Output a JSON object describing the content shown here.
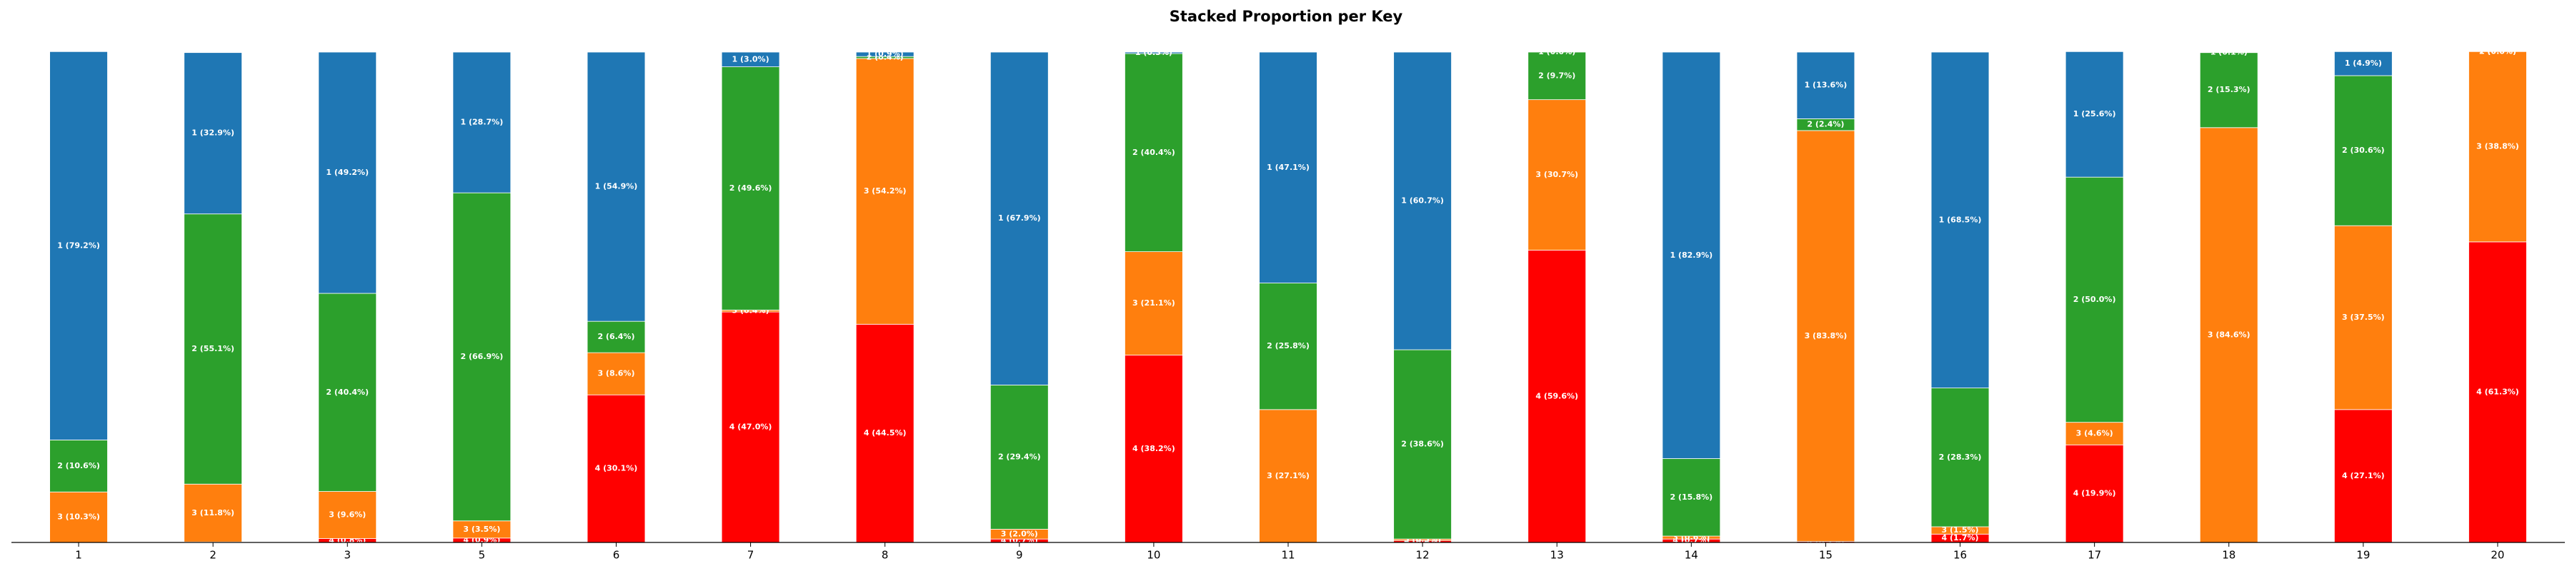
{
  "chart_data": {
    "type": "stacked_bar",
    "title": "Stacked Proportion per Key",
    "categories": [
      "1",
      "2",
      "3",
      "5",
      "6",
      "7",
      "8",
      "9",
      "10",
      "11",
      "12",
      "13",
      "14",
      "15",
      "16",
      "17",
      "18",
      "19",
      "20"
    ],
    "ylim": [
      0,
      100
    ],
    "series": [
      {
        "color": "#ff0000",
        "values": [
          0.0,
          0.1,
          0.8,
          0.9,
          30.1,
          47.0,
          44.5,
          0.7,
          38.2,
          0.0,
          0.4,
          59.6,
          0.7,
          0.2,
          1.7,
          19.9,
          0.0,
          27.1,
          61.3
        ],
        "value_labels": [
          "4 (0.0%)",
          "4 (0.1%)",
          "4 (0.8%)",
          "4 (0.9%)",
          "4 (30.1%)",
          "4 (47.0%)",
          "4 (44.5%)",
          "4 (0.7%)",
          "4 (38.2%)",
          "4 (0.0%)",
          "4 (0.4%)",
          "4 (59.6%)",
          "4 (0.7%)",
          "4 (0.2%)",
          "4 (1.7%)",
          "4 (19.9%)",
          "4 (0.0%)",
          "4 (27.1%)",
          "4 (61.3%)"
        ]
      },
      {
        "color": "#ff7f0e",
        "values": [
          10.3,
          11.8,
          9.6,
          3.5,
          8.6,
          0.4,
          54.2,
          2.0,
          21.1,
          27.1,
          0.3,
          30.7,
          0.6,
          83.8,
          1.5,
          4.6,
          84.6,
          37.5,
          38.8
        ],
        "value_labels": [
          "3 (10.3%)",
          "3 (11.8%)",
          "3 (9.6%)",
          "3 (3.5%)",
          "3 (8.6%)",
          "3 (0.4%)",
          "3 (54.2%)",
          "3 (2.0%)",
          "3 (21.1%)",
          "3 (27.1%)",
          "3 (0.3%)",
          "3 (30.7%)",
          "3 (0.6%)",
          "3 (83.8%)",
          "3 (1.5%)",
          "3 (4.6%)",
          "3 (84.6%)",
          "3 (37.5%)",
          "3 (38.8%)"
        ]
      },
      {
        "color": "#2ca02c",
        "values": [
          10.6,
          55.1,
          40.4,
          66.9,
          6.4,
          49.6,
          0.4,
          29.4,
          40.4,
          25.8,
          38.6,
          9.7,
          15.8,
          2.4,
          28.3,
          50.0,
          15.3,
          30.6,
          0.0
        ],
        "value_labels": [
          "2 (10.6%)",
          "2 (55.1%)",
          "2 (40.4%)",
          "2 (66.9%)",
          "2 (6.4%)",
          "2 (49.6%)",
          "2 (0.4%)",
          "2 (29.4%)",
          "2 (40.4%)",
          "2 (25.8%)",
          "2 (38.6%)",
          "2 (9.7%)",
          "2 (15.8%)",
          "2 (2.4%)",
          "2 (28.3%)",
          "2 (50.0%)",
          "2 (15.3%)",
          "2 (30.6%)",
          "2 (0.0%)"
        ]
      },
      {
        "color": "#1f77b4",
        "values": [
          79.2,
          32.9,
          49.2,
          28.7,
          54.9,
          3.0,
          0.9,
          67.9,
          0.3,
          47.1,
          60.7,
          0.0,
          82.9,
          13.6,
          68.5,
          25.6,
          0.1,
          4.9,
          0.0
        ],
        "value_labels": [
          "1 (79.2%)",
          "1 (32.9%)",
          "1 (49.2%)",
          "1 (28.7%)",
          "1 (54.9%)",
          "1 (3.0%)",
          "1 (0.9%)",
          "1 (67.9%)",
          "1 (0.3%)",
          "1 (47.1%)",
          "1 (60.7%)",
          "1 (0.0%)",
          "1 (82.9%)",
          "1 (13.6%)",
          "1 (68.5%)",
          "1 (25.6%)",
          "1 (0.1%)",
          "1 (4.9%)",
          "1 (0.0%)"
        ]
      }
    ]
  }
}
